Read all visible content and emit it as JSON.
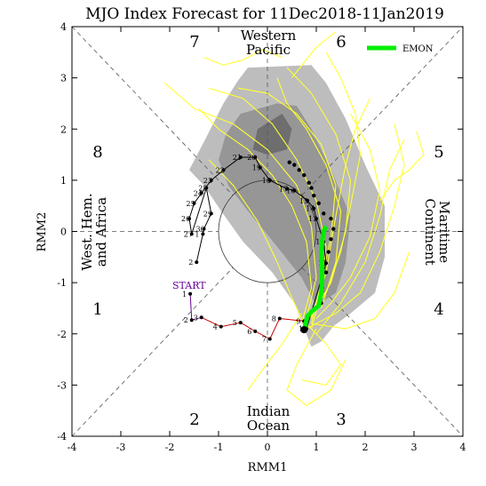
{
  "chart_data": {
    "type": "scatter",
    "title": "MJO Index Forecast for 11Dec2018-11Jan2019",
    "xlabel": "RMM1",
    "ylabel": "RMM2",
    "xlim": [
      -4,
      4
    ],
    "ylim": [
      -4,
      4
    ],
    "ticks": [
      "-4",
      "-3",
      "-2",
      "-1",
      "0",
      "1",
      "2",
      "3",
      "4"
    ],
    "phase_labels": [
      {
        "text": "1",
        "x": -3.2,
        "y": -1.6
      },
      {
        "text": "2",
        "x": -1.25,
        "y": -3.75
      },
      {
        "text": "3",
        "x": 0.55,
        "y": -3.75
      },
      {
        "text": "4",
        "x": 2.55,
        "y": -1.6
      },
      {
        "text": "5",
        "x": 2.55,
        "y": 1.65
      },
      {
        "text": "6",
        "x": 0.55,
        "y": 3.65
      },
      {
        "text": "7",
        "x": -1.25,
        "y": 3.65
      },
      {
        "text": "8",
        "x": -3.2,
        "y": 1.65
      }
    ],
    "region_labels": {
      "top": [
        "Western",
        "Pacific"
      ],
      "bottom": [
        "Indian",
        "Ocean"
      ],
      "left": [
        "West. Hem.",
        "and Africa"
      ],
      "right": [
        "Maritime",
        "Continent"
      ]
    },
    "legend": {
      "label": "EMON",
      "color": "#00ee00",
      "position": "top-right"
    },
    "start_label": "START",
    "start_color": "#660099",
    "observed": [
      {
        "day": "1",
        "x": -1.58,
        "y": -1.22,
        "seg": "purple"
      },
      {
        "day": "2",
        "x": -1.55,
        "y": -1.73,
        "seg": "purple"
      },
      {
        "day": "3",
        "x": -1.35,
        "y": -1.68,
        "seg": "purple"
      },
      {
        "day": "4",
        "x": -0.95,
        "y": -1.86,
        "seg": "red"
      },
      {
        "day": "5",
        "x": -0.55,
        "y": -1.78,
        "seg": "red"
      },
      {
        "day": "6",
        "x": -0.25,
        "y": -1.95,
        "seg": "red"
      },
      {
        "day": "7",
        "x": 0.05,
        "y": -2.1,
        "seg": "red"
      },
      {
        "day": "8",
        "x": 0.25,
        "y": -1.7,
        "seg": "red"
      },
      {
        "day": "9",
        "x": 0.75,
        "y": -1.75,
        "seg": "red"
      },
      {
        "day": "10",
        "x": 0.8,
        "y": -1.9,
        "seg": "black"
      },
      {
        "day": "11",
        "x": 1.2,
        "y": -0.62,
        "seg": "black"
      },
      {
        "day": "12",
        "x": 1.15,
        "y": -0.2,
        "seg": "black"
      },
      {
        "day": "13",
        "x": 1.0,
        "y": 0.25,
        "seg": "black"
      },
      {
        "day": "14",
        "x": 0.95,
        "y": 0.45,
        "seg": "black"
      },
      {
        "day": "15",
        "x": 0.82,
        "y": 0.6,
        "seg": "black"
      },
      {
        "day": "16",
        "x": 0.55,
        "y": 0.8,
        "seg": "black"
      },
      {
        "day": "17",
        "x": 0.4,
        "y": 0.83,
        "seg": "black"
      },
      {
        "day": "18",
        "x": 0.05,
        "y": 1.0,
        "seg": "black"
      },
      {
        "day": "19",
        "x": -0.15,
        "y": 1.25,
        "seg": "black"
      },
      {
        "day": "20",
        "x": -0.25,
        "y": 1.45,
        "seg": "black"
      },
      {
        "day": "21",
        "x": -0.55,
        "y": 1.45,
        "seg": "black"
      },
      {
        "day": "22",
        "x": -0.9,
        "y": 1.2,
        "seg": "black"
      },
      {
        "day": "23",
        "x": -1.15,
        "y": 1.0,
        "seg": "black"
      },
      {
        "day": "24",
        "x": -1.35,
        "y": 0.75,
        "seg": "black"
      },
      {
        "day": "25",
        "x": -1.5,
        "y": 0.55,
        "seg": "black"
      },
      {
        "day": "26",
        "x": -1.6,
        "y": 0.25,
        "seg": "black"
      },
      {
        "day": "27",
        "x": -1.55,
        "y": -0.05,
        "seg": "black"
      },
      {
        "day": "28",
        "x": -1.25,
        "y": 0.85,
        "seg": "black"
      },
      {
        "day": "29",
        "x": -1.15,
        "y": 0.35,
        "seg": "black"
      },
      {
        "day": "30",
        "x": -1.3,
        "y": 0.05,
        "seg": "black"
      },
      {
        "day": "1",
        "x": -1.32,
        "y": -0.05,
        "seg": "black"
      },
      {
        "day": "2",
        "x": -1.45,
        "y": -0.6,
        "seg": "black"
      }
    ],
    "forecast_dots": [
      {
        "x": 0.45,
        "y": 1.35
      },
      {
        "x": 0.55,
        "y": 1.3
      },
      {
        "x": 0.65,
        "y": 1.2
      },
      {
        "x": 0.75,
        "y": 1.1
      },
      {
        "x": 0.85,
        "y": 0.95
      },
      {
        "x": 0.9,
        "y": 0.85
      },
      {
        "x": 0.95,
        "y": 0.7
      },
      {
        "x": 1.05,
        "y": 0.55
      },
      {
        "x": 1.15,
        "y": 0.35
      },
      {
        "x": 1.3,
        "y": 0.25
      },
      {
        "x": 1.35,
        "y": 0.05
      },
      {
        "x": 1.3,
        "y": -0.15
      },
      {
        "x": 1.25,
        "y": -0.4
      },
      {
        "x": 1.2,
        "y": -0.8
      },
      {
        "x": 1.12,
        "y": -1.1
      },
      {
        "x": 1.1,
        "y": -1.4
      }
    ],
    "emon_mean": [
      {
        "x": 0.75,
        "y": -1.92
      },
      {
        "x": 0.82,
        "y": -1.65
      },
      {
        "x": 0.92,
        "y": -1.55
      },
      {
        "x": 1.05,
        "y": -1.45
      },
      {
        "x": 1.1,
        "y": -1.2
      },
      {
        "x": 1.12,
        "y": -0.95
      },
      {
        "x": 1.12,
        "y": -0.7
      },
      {
        "x": 1.1,
        "y": -0.45
      },
      {
        "x": 1.12,
        "y": -0.2
      },
      {
        "x": 1.15,
        "y": 0.0
      },
      {
        "x": 1.2,
        "y": 0.1
      }
    ],
    "ensemble_envelope_outer": [
      [
        -0.4,
        3.2
      ],
      [
        0.9,
        3.25
      ],
      [
        1.2,
        2.9
      ],
      [
        1.6,
        2.2
      ],
      [
        2.0,
        1.3
      ],
      [
        2.4,
        0.5
      ],
      [
        2.4,
        -0.5
      ],
      [
        2.2,
        -1.2
      ],
      [
        1.7,
        -1.6
      ],
      [
        1.35,
        -1.85
      ],
      [
        1.1,
        -2.15
      ],
      [
        0.9,
        -2.25
      ],
      [
        0.55,
        -1.4
      ],
      [
        0.1,
        -0.8
      ],
      [
        -0.5,
        -0.2
      ],
      [
        -0.95,
        0.4
      ],
      [
        -1.3,
        0.9
      ],
      [
        -1.6,
        1.2
      ],
      [
        -1.3,
        1.75
      ],
      [
        -0.9,
        2.5
      ],
      [
        -0.6,
        2.95
      ]
    ],
    "ensemble_envelope_inner": [
      [
        -0.55,
        2.3
      ],
      [
        0.2,
        2.5
      ],
      [
        0.6,
        2.45
      ],
      [
        0.9,
        2.0
      ],
      [
        1.3,
        1.2
      ],
      [
        1.7,
        0.3
      ],
      [
        1.6,
        -0.6
      ],
      [
        1.4,
        -1.2
      ],
      [
        1.0,
        -1.45
      ],
      [
        0.7,
        -0.9
      ],
      [
        0.2,
        -0.3
      ],
      [
        -0.4,
        0.4
      ],
      [
        -0.8,
        0.9
      ],
      [
        -1.0,
        1.4
      ],
      [
        -0.85,
        1.9
      ]
    ],
    "ensemble_envelope_core": [
      [
        -0.2,
        2.0
      ],
      [
        0.3,
        2.3
      ],
      [
        0.5,
        2.0
      ],
      [
        0.4,
        1.6
      ],
      [
        0.0,
        1.5
      ],
      [
        -0.3,
        1.6
      ]
    ],
    "ensemble_members": [
      [
        [
          0.9,
          -1.9
        ],
        [
          1.1,
          -1.2
        ],
        [
          1.2,
          -0.3
        ],
        [
          1.0,
          0.6
        ],
        [
          0.6,
          1.4
        ],
        [
          0.1,
          2.1
        ],
        [
          -0.5,
          2.6
        ],
        [
          -1.2,
          2.8
        ]
      ],
      [
        [
          0.8,
          -1.8
        ],
        [
          1.3,
          -1.0
        ],
        [
          1.6,
          0.0
        ],
        [
          1.7,
          1.0
        ],
        [
          1.4,
          1.9
        ],
        [
          0.9,
          2.7
        ],
        [
          0.4,
          3.2
        ]
      ],
      [
        [
          1.0,
          -2.0
        ],
        [
          1.5,
          -1.4
        ],
        [
          2.0,
          -0.6
        ],
        [
          2.3,
          0.3
        ],
        [
          2.5,
          1.2
        ],
        [
          2.8,
          1.8
        ]
      ],
      [
        [
          0.7,
          -1.8
        ],
        [
          0.9,
          -1.1
        ],
        [
          0.8,
          -0.2
        ],
        [
          0.5,
          0.5
        ],
        [
          0.1,
          1.1
        ],
        [
          -0.4,
          1.6
        ],
        [
          -1.0,
          2.0
        ],
        [
          -1.4,
          2.4
        ]
      ],
      [
        [
          0.9,
          -1.7
        ],
        [
          1.2,
          -0.8
        ],
        [
          1.4,
          0.3
        ],
        [
          1.6,
          1.3
        ],
        [
          1.8,
          2.0
        ],
        [
          2.1,
          2.6
        ]
      ],
      [
        [
          0.8,
          -1.9
        ],
        [
          1.4,
          -1.6
        ],
        [
          1.9,
          -1.2
        ],
        [
          2.3,
          -0.4
        ],
        [
          2.6,
          0.5
        ],
        [
          2.8,
          1.3
        ],
        [
          2.6,
          2.1
        ]
      ],
      [
        [
          1.0,
          -1.9
        ],
        [
          0.6,
          -2.6
        ],
        [
          0.4,
          -3.1
        ],
        [
          0.8,
          -3.4
        ],
        [
          1.3,
          -3.1
        ],
        [
          1.6,
          -2.5
        ]
      ],
      [
        [
          0.7,
          -1.6
        ],
        [
          0.3,
          -2.2
        ],
        [
          -0.1,
          -2.7
        ],
        [
          -0.4,
          -3.1
        ]
      ],
      [
        [
          0.9,
          -1.8
        ],
        [
          1.6,
          -1.9
        ],
        [
          2.2,
          -1.7
        ],
        [
          2.6,
          -1.2
        ],
        [
          2.9,
          -0.4
        ]
      ],
      [
        [
          0.8,
          -1.7
        ],
        [
          1.0,
          -0.9
        ],
        [
          0.9,
          0.1
        ],
        [
          0.6,
          0.9
        ],
        [
          0.0,
          1.6
        ],
        [
          -0.7,
          2.1
        ],
        [
          -1.5,
          2.4
        ],
        [
          -2.1,
          2.9
        ]
      ],
      [
        [
          1.1,
          -1.5
        ],
        [
          1.4,
          -0.6
        ],
        [
          1.5,
          0.4
        ],
        [
          1.2,
          1.3
        ],
        [
          0.8,
          2.0
        ],
        [
          0.4,
          2.5
        ],
        [
          0.2,
          3.0
        ]
      ],
      [
        [
          0.9,
          -1.6
        ],
        [
          1.2,
          -1.2
        ],
        [
          1.5,
          -0.4
        ],
        [
          1.7,
          0.5
        ],
        [
          1.9,
          1.5
        ],
        [
          1.8,
          2.3
        ],
        [
          1.5,
          3.0
        ],
        [
          1.2,
          3.5
        ]
      ],
      [
        [
          0.8,
          -1.9
        ],
        [
          0.5,
          -1.3
        ],
        [
          0.2,
          -0.6
        ],
        [
          -0.2,
          0.2
        ],
        [
          -0.7,
          0.9
        ],
        [
          -1.2,
          1.4
        ]
      ],
      [
        [
          1.0,
          -1.7
        ],
        [
          1.3,
          -1.4
        ],
        [
          1.7,
          -0.9
        ],
        [
          2.1,
          -0.1
        ],
        [
          2.3,
          0.8
        ],
        [
          2.1,
          1.6
        ],
        [
          1.7,
          2.3
        ]
      ],
      [
        [
          0.9,
          -1.8
        ],
        [
          1.1,
          -1.0
        ],
        [
          1.3,
          -0.1
        ],
        [
          1.4,
          0.9
        ],
        [
          1.1,
          1.7
        ],
        [
          0.6,
          2.3
        ],
        [
          0.0,
          2.7
        ],
        [
          -0.6,
          2.8
        ]
      ],
      [
        [
          0.8,
          -1.8
        ],
        [
          1.2,
          -2.2
        ],
        [
          1.5,
          -2.6
        ],
        [
          1.2,
          -3.0
        ],
        [
          0.7,
          -2.9
        ]
      ],
      [
        [
          2.3,
          0.6
        ],
        [
          2.6,
          1.0
        ],
        [
          2.9,
          1.2
        ],
        [
          3.2,
          1.5
        ],
        [
          3.05,
          1.95
        ]
      ],
      [
        [
          -1.3,
          3.4
        ],
        [
          -0.9,
          3.25
        ],
        [
          -0.5,
          3.35
        ],
        [
          -0.1,
          3.55
        ],
        [
          0.3,
          3.4
        ]
      ],
      [
        [
          0.5,
          3.0
        ],
        [
          1.0,
          3.6
        ],
        [
          1.4,
          3.9
        ]
      ]
    ]
  }
}
